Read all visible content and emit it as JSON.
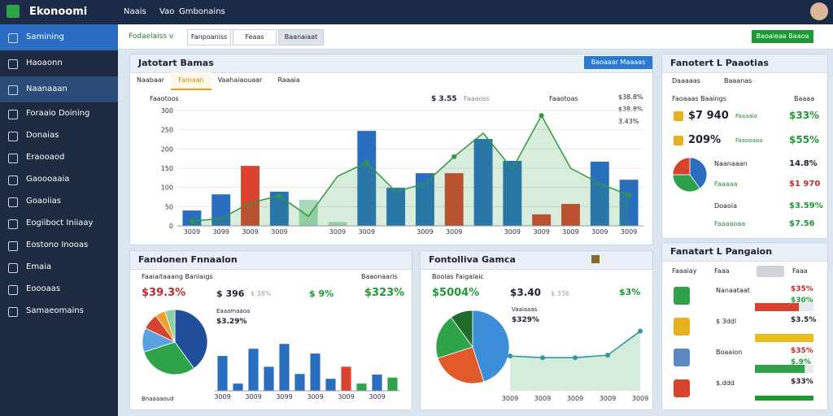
{
  "topbar": {
    "brand": "Ekonoomi",
    "nav": [
      "Naais",
      "Vao",
      "Gmbonains"
    ]
  },
  "sidebar": [
    "Samining",
    "Haoaonn",
    "Naanaaan",
    "Foraaio Doining",
    "Donaias",
    "Eraooaod",
    "Gaoooaaia",
    "Goaoiias",
    "Eogiiboct Iniiaay",
    "Eostono Inooas",
    "Emaia",
    "Eoooaas",
    "Samaeomains"
  ],
  "toolbar": {
    "filter": "Fodaelaiss v",
    "tabs": [
      "Fanpoaniss",
      "Feaas",
      "Baanaiaat"
    ],
    "action": "Baoaieaa Baaoa"
  },
  "overview": {
    "title": "Jatotart Bamas",
    "button": "Baoaaar Maaaas",
    "tabs": [
      "Naabaar",
      "Famaan",
      "Vaahaiaouaar",
      "Raaaia"
    ],
    "legend": [
      "Faaotoos"
    ],
    "stat": "$ 3.55",
    "stat_label": "Faaaoss",
    "legend2": "Faaotoas",
    "side_legend": [
      "$38.8%",
      "$38.8%",
      "3.43%"
    ],
    "chart": {
      "type": "bar",
      "ylim": [
        0,
        300
      ],
      "yticks": [
        0,
        50,
        100,
        150,
        200,
        250,
        300
      ],
      "categories": [
        "3009",
        "3099",
        "3009",
        "3009",
        null,
        "3009",
        "3009",
        null,
        "3009",
        "3009",
        null,
        "3009",
        "3009",
        "3009",
        "3009",
        "3009"
      ],
      "values": [
        40,
        82,
        156,
        89,
        68,
        10,
        247,
        99,
        137,
        137,
        226,
        169,
        30,
        57,
        167,
        120
      ],
      "colors": [
        "#2a6fbf",
        "#2a6fbf",
        "#d8432f",
        "#2a6fbf",
        "#a8d9b8",
        "#a8d9b8",
        "#2a6fbf",
        "#2a6fbf",
        "#2a6fbf",
        "#d8432f",
        "#2a6fbf",
        "#2a6fbf",
        "#d8432f",
        "#d8432f",
        "#2a6fbf",
        "#2a6fbf"
      ],
      "line": {
        "color": "#2e9a3c",
        "values": [
          12,
          19,
          60,
          78,
          25,
          129,
          165,
          89,
          110,
          180,
          241,
          148,
          287,
          150,
          110,
          80
        ]
      }
    }
  },
  "summary": {
    "title": "Fandonen Fnnaalon",
    "subtitle": "Faaiaitaaang Banlaigs",
    "right": "Baaonaaris",
    "figures": [
      "$39.3%",
      "$ 396",
      "$ 38%",
      "$ 9%",
      "$323%"
    ],
    "bar_caption": "Eaaamaaoa",
    "bar_value": "$3.29%",
    "pie_caption": "Bnaaaaoud",
    "pie": {
      "type": "pie",
      "values": [
        40,
        30,
        12,
        8,
        5,
        5
      ],
      "colors": [
        "#1f4f9a",
        "#2ea34a",
        "#5aa3e0",
        "#d8432f",
        "#f0a030",
        "#8fd0a0"
      ]
    },
    "bars": {
      "type": "bar",
      "ylim": [
        0,
        100
      ],
      "categories": [
        "3009",
        null,
        "3009",
        null,
        "3099",
        null,
        "3009",
        null,
        "3009",
        null,
        "3009",
        null
      ],
      "values": [
        58,
        12,
        70,
        40,
        78,
        28,
        62,
        20,
        40,
        12,
        27,
        22
      ],
      "colors": [
        "#2a6fbf",
        "#2a6fbf",
        "#2a6fbf",
        "#2a6fbf",
        "#2a6fbf",
        "#2a6fbf",
        "#2a6fbf",
        "#2a6fbf",
        "#d8432f",
        "#2ea34a",
        "#2a6fbf",
        "#2ea34a"
      ]
    }
  },
  "trend": {
    "title": "Fontolliva Gamca",
    "subtitle": "Booias Faigalaic",
    "figures": [
      "$5004%",
      "$3.40",
      "$ 336",
      "$3%"
    ],
    "caption": "Vaaiaaas",
    "caption_value": "$329%",
    "categories": [
      "3009",
      "3009",
      "3009",
      "3009",
      "3009"
    ],
    "pie": {
      "type": "pie",
      "values": [
        45,
        25,
        20,
        10
      ],
      "colors": [
        "#3a8fd8",
        "#e35a2a",
        "#2ea34a",
        "#1f6b2a"
      ]
    },
    "line": {
      "type": "line",
      "ylim": [
        0,
        100
      ],
      "color": "#2a9aa0",
      "values": [
        42,
        40,
        40,
        43,
        72
      ]
    }
  },
  "right1": {
    "title": "Fanotert L Paaotias",
    "heads": [
      "Daaaaas",
      "Baaanas"
    ],
    "row_head": [
      "Faoaaas Baaings",
      "Baaaa"
    ],
    "rows": [
      [
        "$7 940",
        "Faaaaia",
        "$33%"
      ],
      [
        "209%",
        "Faaooaoa",
        "$55%"
      ],
      [
        "Naanaaan",
        "14.8%"
      ],
      [
        "Faaaaa",
        "$1 970"
      ],
      [
        "Doaoia",
        "$3.59%"
      ],
      [
        "Faaaaoaa",
        "$7.56"
      ]
    ],
    "pie": {
      "type": "pie",
      "values": [
        40,
        35,
        25
      ],
      "colors": [
        "#2a6fbf",
        "#2ea34a",
        "#d8432f"
      ]
    }
  },
  "right2": {
    "title": "Fanatart L Pangaion",
    "heads": [
      "Faaaiay",
      "Faaa",
      "Faaa"
    ],
    "rows": [
      [
        "Nanaataat",
        "$35%",
        "$30%"
      ],
      [
        "$ 3ddl",
        "$3.5%",
        ""
      ],
      [
        "Boaaion",
        "$35%",
        "$.9%"
      ],
      [
        "$.ddd",
        "$33%",
        ""
      ]
    ],
    "progress": {
      "type": "bar",
      "ylim": [
        0,
        100
      ],
      "values": [
        75,
        100,
        85,
        100
      ],
      "colors": [
        "#d8432f",
        "#e8c020",
        "#2ea34a",
        "#1f9a2e"
      ]
    }
  }
}
